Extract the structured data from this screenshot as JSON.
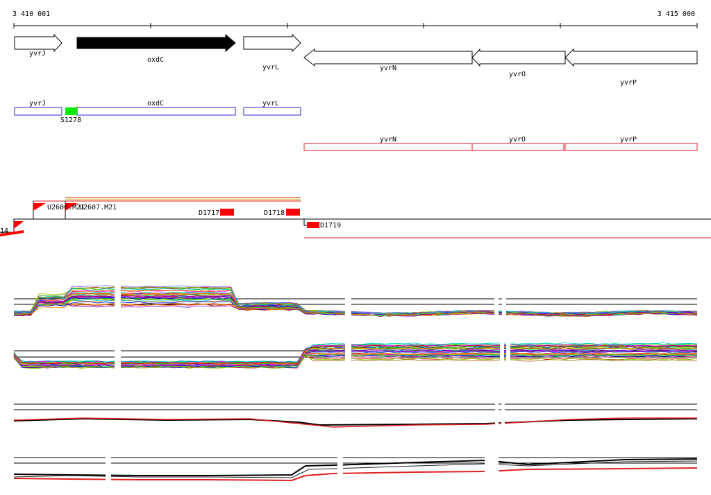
{
  "axis": {
    "start_label": "3 410 001",
    "end_label": "3 415 000"
  },
  "genes_top": [
    {
      "name": "yvrJ"
    },
    {
      "name": "oxdC"
    },
    {
      "name": "yvrL"
    },
    {
      "name": "yvrN"
    },
    {
      "name": "yvrO"
    },
    {
      "name": "yvrP"
    }
  ],
  "segments_forward": [
    {
      "label": "yvrJ"
    },
    {
      "label": "oxdC"
    },
    {
      "label": "yvrL"
    }
  ],
  "feature_green": {
    "label": "S1278",
    "color": "#00ee00"
  },
  "segments_reverse": [
    {
      "label": "yvrN"
    },
    {
      "label": "yvrO"
    },
    {
      "label": "yvrP"
    }
  ],
  "features_red": [
    {
      "label": "U2606.M21"
    },
    {
      "label": "U2607.M21"
    },
    {
      "label": "D1717"
    },
    {
      "label": "D1718"
    },
    {
      "label": "D1719"
    },
    {
      "label": "14"
    }
  ],
  "colors": {
    "forward_box": "#2b2bd0",
    "reverse_box": "#e02020",
    "feature": "#ff0000"
  }
}
